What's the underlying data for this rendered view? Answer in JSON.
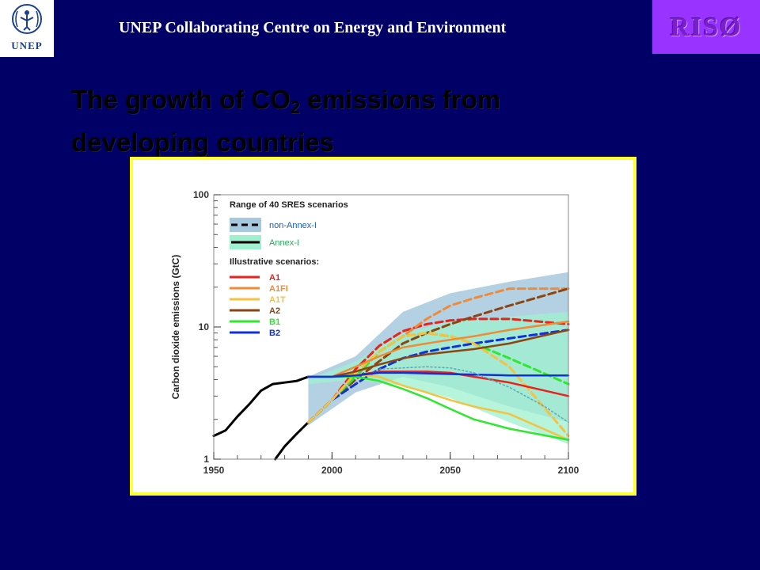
{
  "header": {
    "title": "UNEP Collaborating Centre on Energy and Environment",
    "unep_logo_text": "UNEP",
    "riso_logo_text": "RISØ"
  },
  "slide": {
    "title_line1_a": "The growth of CO",
    "title_line1_sub": "2",
    "title_line1_b": " emissions from",
    "title_line2": "developing countries"
  },
  "colors": {
    "background": "#000066",
    "chart_border": "#ffff33",
    "riso": "#9933ff"
  },
  "chart_data": {
    "type": "line",
    "ylabel": "Carbon dioxide emissions (GtC)",
    "yscale": "log",
    "ylim": [
      1,
      100
    ],
    "xlim": [
      1950,
      2100
    ],
    "x_ticks": [
      "1950",
      "2000",
      "2050",
      "2100"
    ],
    "y_ticks": [
      "1",
      "10",
      "100"
    ],
    "legend": {
      "placement": "top-left",
      "title": "Range of 40 SRES scenarios",
      "range_entries": [
        {
          "label": "non-Annex-I",
          "line": "dashed",
          "color": "#a7c9df",
          "text_color": "#1a5fb4"
        },
        {
          "label": "Annex-I",
          "line": "solid",
          "color": "#9ef0cf",
          "text_color": "#2aa85a"
        }
      ],
      "illustrative_title": "Illustrative scenarios:",
      "scenarios": [
        {
          "label": "A1",
          "color": "#e8231d"
        },
        {
          "label": "A1FI",
          "color": "#f08a36"
        },
        {
          "label": "A1T",
          "color": "#f5c242"
        },
        {
          "label": "A2",
          "color": "#8b4513"
        },
        {
          "label": "B1",
          "color": "#2ee82e"
        },
        {
          "label": "B2",
          "color": "#1131d6"
        }
      ]
    },
    "bands": [
      {
        "name": "non-Annex-I range",
        "upper": [
          [
            1990,
            4.2
          ],
          [
            2010,
            6
          ],
          [
            2030,
            13
          ],
          [
            2050,
            18
          ],
          [
            2075,
            22
          ],
          [
            2100,
            26
          ]
        ],
        "lower": [
          [
            1990,
            1.8
          ],
          [
            2010,
            3.2
          ],
          [
            2030,
            4.2
          ],
          [
            2050,
            3.5
          ],
          [
            2075,
            2.5
          ],
          [
            2100,
            1.9
          ]
        ]
      },
      {
        "name": "Annex-I range",
        "upper": [
          [
            1990,
            4.0
          ],
          [
            2010,
            5.5
          ],
          [
            2030,
            9
          ],
          [
            2050,
            11
          ],
          [
            2075,
            12
          ],
          [
            2100,
            13
          ]
        ],
        "lower": [
          [
            1990,
            3.7
          ],
          [
            2010,
            4.0
          ],
          [
            2030,
            3.6
          ],
          [
            2050,
            2.9
          ],
          [
            2075,
            1.9
          ],
          [
            2100,
            1.3
          ]
        ]
      }
    ],
    "series": [
      {
        "name": "historical Annex-I",
        "color": "#000000",
        "dash": "solid",
        "points": [
          [
            1950,
            1.5
          ],
          [
            1955,
            1.65
          ],
          [
            1960,
            2.1
          ],
          [
            1965,
            2.6
          ],
          [
            1970,
            3.3
          ],
          [
            1975,
            3.7
          ],
          [
            1980,
            3.8
          ],
          [
            1985,
            3.9
          ],
          [
            1990,
            4.2
          ]
        ]
      },
      {
        "name": "historical non-Annex-I",
        "color": "#000000",
        "dash": "solid",
        "points": [
          [
            1976,
            1.0
          ],
          [
            1980,
            1.25
          ],
          [
            1985,
            1.55
          ],
          [
            1990,
            1.9
          ]
        ]
      },
      {
        "name": "A1 non-Annex-I",
        "color": "#e8231d",
        "dash": "dashed",
        "points": [
          [
            1990,
            1.9
          ],
          [
            2000,
            2.8
          ],
          [
            2010,
            4.8
          ],
          [
            2020,
            7.2
          ],
          [
            2030,
            9.3
          ],
          [
            2040,
            10.5
          ],
          [
            2050,
            11.2
          ],
          [
            2060,
            11.5
          ],
          [
            2075,
            11.5
          ],
          [
            2100,
            10.5
          ]
        ]
      },
      {
        "name": "A1FI non-Annex-I",
        "color": "#f08a36",
        "dash": "dashed",
        "points": [
          [
            1990,
            1.9
          ],
          [
            2000,
            2.8
          ],
          [
            2010,
            4.2
          ],
          [
            2020,
            6.5
          ],
          [
            2030,
            8.5
          ],
          [
            2040,
            11.5
          ],
          [
            2050,
            14.5
          ],
          [
            2060,
            16.5
          ],
          [
            2075,
            19.5
          ],
          [
            2100,
            19.5
          ]
        ]
      },
      {
        "name": "A2 non-Annex-I",
        "color": "#8b4513",
        "dash": "dashed",
        "points": [
          [
            1990,
            1.9
          ],
          [
            2000,
            2.8
          ],
          [
            2010,
            4.0
          ],
          [
            2020,
            5.5
          ],
          [
            2030,
            7.5
          ],
          [
            2040,
            9.0
          ],
          [
            2050,
            10.5
          ],
          [
            2060,
            12.0
          ],
          [
            2075,
            14.5
          ],
          [
            2100,
            19.5
          ]
        ]
      },
      {
        "name": "B1 non-Annex-I",
        "color": "#2ee82e",
        "dash": "dashed",
        "points": [
          [
            1990,
            1.9
          ],
          [
            2000,
            2.8
          ],
          [
            2010,
            4.2
          ],
          [
            2020,
            6.5
          ],
          [
            2030,
            8.5
          ],
          [
            2040,
            9.0
          ],
          [
            2050,
            8.5
          ],
          [
            2060,
            7.5
          ],
          [
            2075,
            5.8
          ],
          [
            2100,
            3.7
          ]
        ]
      },
      {
        "name": "B2 non-Annex-I",
        "color": "#1131d6",
        "dash": "dashed",
        "points": [
          [
            1990,
            1.9
          ],
          [
            2000,
            2.8
          ],
          [
            2010,
            3.7
          ],
          [
            2020,
            4.8
          ],
          [
            2030,
            5.8
          ],
          [
            2040,
            6.5
          ],
          [
            2050,
            7.0
          ],
          [
            2060,
            7.5
          ],
          [
            2075,
            8.2
          ],
          [
            2100,
            9.5
          ]
        ]
      },
      {
        "name": "A1T non-Annex-I",
        "color": "#f5c242",
        "dash": "dashed",
        "points": [
          [
            1990,
            1.9
          ],
          [
            2000,
            2.8
          ],
          [
            2010,
            4.5
          ],
          [
            2020,
            6.5
          ],
          [
            2030,
            8.5
          ],
          [
            2040,
            9.0
          ],
          [
            2050,
            8.5
          ],
          [
            2060,
            7.5
          ],
          [
            2075,
            5.0
          ],
          [
            2100,
            1.5
          ]
        ]
      },
      {
        "name": "A1 Annex-I",
        "color": "#e8231d",
        "dash": "solid",
        "points": [
          [
            1990,
            4.2
          ],
          [
            2000,
            4.2
          ],
          [
            2010,
            4.3
          ],
          [
            2020,
            4.6
          ],
          [
            2030,
            4.6
          ],
          [
            2040,
            4.6
          ],
          [
            2050,
            4.5
          ],
          [
            2060,
            4.2
          ],
          [
            2075,
            3.8
          ],
          [
            2100,
            3.0
          ]
        ]
      },
      {
        "name": "A1FI Annex-I",
        "color": "#f08a36",
        "dash": "solid",
        "points": [
          [
            1990,
            4.2
          ],
          [
            2000,
            4.2
          ],
          [
            2010,
            5.0
          ],
          [
            2020,
            6.0
          ],
          [
            2030,
            7.0
          ],
          [
            2040,
            7.5
          ],
          [
            2050,
            8.0
          ],
          [
            2060,
            8.5
          ],
          [
            2075,
            9.5
          ],
          [
            2100,
            11.0
          ]
        ]
      },
      {
        "name": "A1T Annex-I",
        "color": "#f5c242",
        "dash": "solid",
        "points": [
          [
            1990,
            4.2
          ],
          [
            2000,
            4.2
          ],
          [
            2010,
            4.4
          ],
          [
            2020,
            4.2
          ],
          [
            2030,
            3.6
          ],
          [
            2040,
            3.2
          ],
          [
            2050,
            2.8
          ],
          [
            2060,
            2.5
          ],
          [
            2075,
            2.2
          ],
          [
            2100,
            1.4
          ]
        ]
      },
      {
        "name": "A2 Annex-I",
        "color": "#8b4513",
        "dash": "solid",
        "points": [
          [
            1990,
            4.2
          ],
          [
            2000,
            4.2
          ],
          [
            2010,
            4.6
          ],
          [
            2020,
            5.2
          ],
          [
            2030,
            5.8
          ],
          [
            2040,
            6.2
          ],
          [
            2050,
            6.5
          ],
          [
            2060,
            6.8
          ],
          [
            2075,
            7.5
          ],
          [
            2100,
            9.5
          ]
        ]
      },
      {
        "name": "B1 Annex-I",
        "color": "#2ee82e",
        "dash": "solid",
        "points": [
          [
            1990,
            4.2
          ],
          [
            2000,
            4.2
          ],
          [
            2010,
            4.2
          ],
          [
            2020,
            3.9
          ],
          [
            2030,
            3.4
          ],
          [
            2040,
            2.9
          ],
          [
            2050,
            2.4
          ],
          [
            2060,
            2.0
          ],
          [
            2075,
            1.7
          ],
          [
            2100,
            1.4
          ]
        ]
      },
      {
        "name": "B2 Annex-I",
        "color": "#1131d6",
        "dash": "solid",
        "points": [
          [
            1990,
            4.2
          ],
          [
            2000,
            4.2
          ],
          [
            2010,
            4.3
          ],
          [
            2020,
            4.5
          ],
          [
            2030,
            4.5
          ],
          [
            2050,
            4.4
          ],
          [
            2075,
            4.3
          ],
          [
            2100,
            4.3
          ]
        ]
      },
      {
        "name": "non-Annex-I median",
        "color": "#5aa9b5",
        "dash": "dotted",
        "points": [
          [
            2020,
            4.8
          ],
          [
            2040,
            5.0
          ],
          [
            2050,
            4.9
          ],
          [
            2060,
            4.5
          ],
          [
            2075,
            3.5
          ],
          [
            2090,
            2.5
          ],
          [
            2100,
            1.9
          ]
        ]
      }
    ]
  }
}
